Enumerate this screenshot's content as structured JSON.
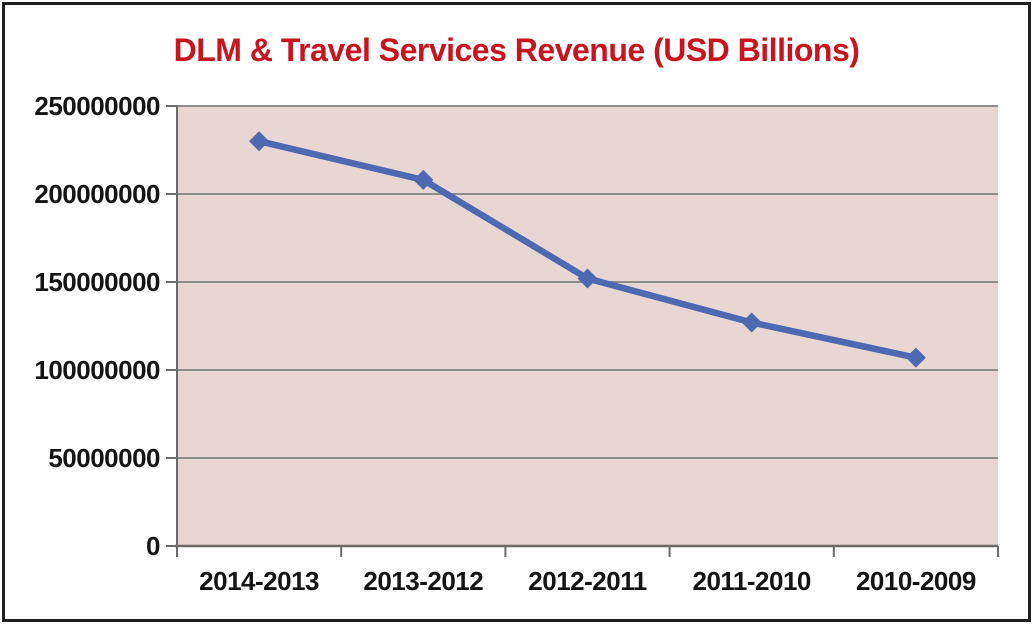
{
  "title": "DLM & Travel Services Revenue (USD Billions)",
  "chart_data": {
    "type": "line",
    "title": "DLM & Travel Services Revenue (USD Billions)",
    "categories": [
      "2014-2013",
      "2013-2012",
      "2012-2011",
      "2011-2010",
      "2010-2009"
    ],
    "series": [
      {
        "name": "DLM & Travel Services Revenue",
        "values": [
          230000000,
          208000000,
          152000000,
          127000000,
          107000000
        ]
      }
    ],
    "xlabel": "",
    "ylabel": "",
    "ylim": [
      0,
      250000000
    ],
    "yticks": [
      0,
      50000000,
      100000000,
      150000000,
      200000000,
      250000000
    ],
    "ytick_labels": [
      "0",
      "50000000",
      "100000000",
      "150000000",
      "200000000",
      "250000000"
    ],
    "grid": true,
    "legend": false,
    "marker": "diamond",
    "colors": {
      "title_text": "#c8141e",
      "series_line": "#4c69b1",
      "marker_fill": "#4c69b1",
      "plot_background": "#e8d6d3",
      "gridline": "#8c8c8c",
      "axis_line": "#6b6b6b",
      "tick_label": "#141414",
      "frame_border": "#202020"
    }
  }
}
